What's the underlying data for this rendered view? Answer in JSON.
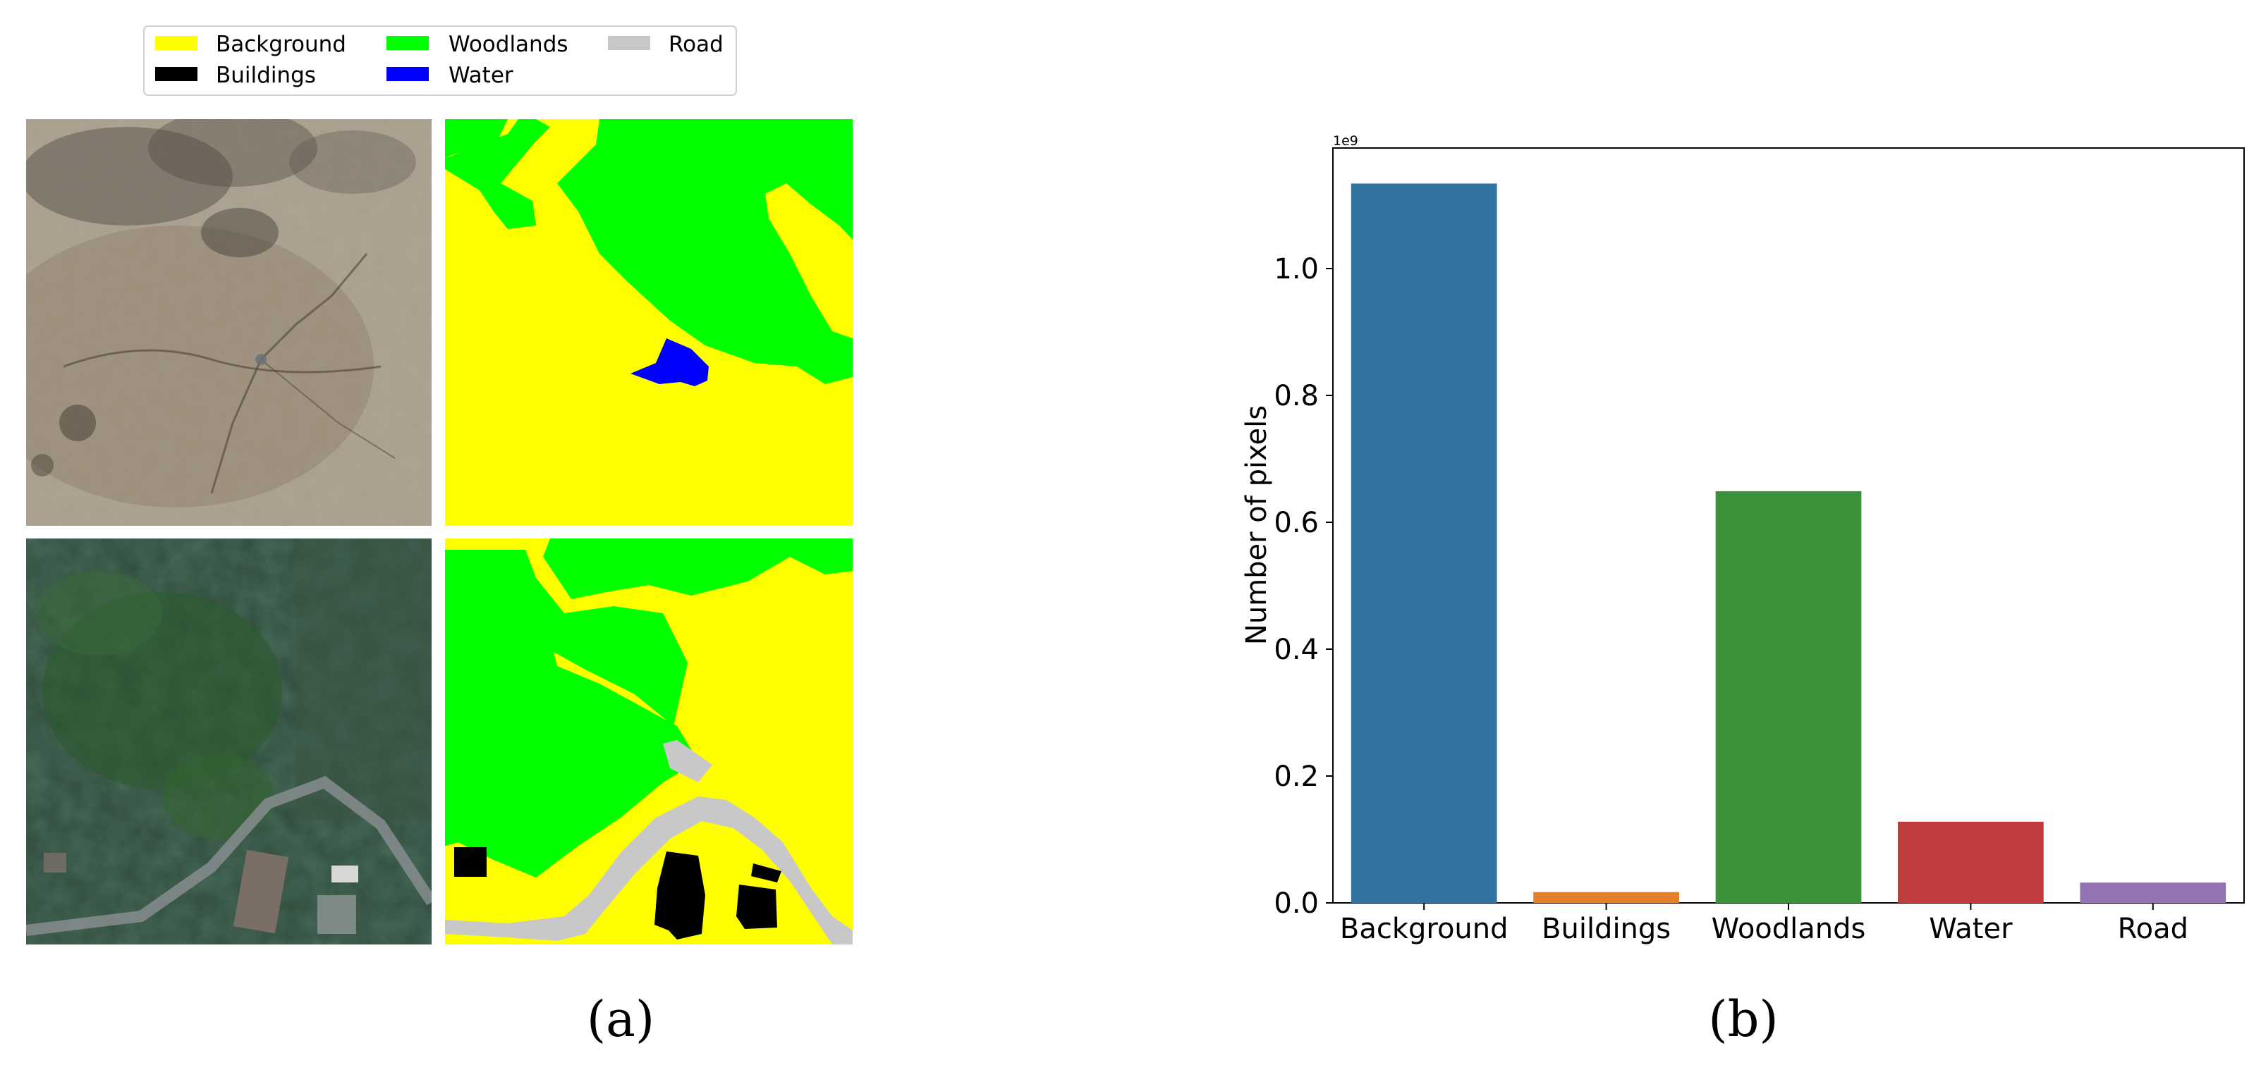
{
  "panel_a": {
    "label": "(a)",
    "legend": [
      {
        "name": "Background",
        "color": "#ffff00"
      },
      {
        "name": "Woodlands",
        "color": "#00ff00"
      },
      {
        "name": "Road",
        "color": "#c8c8c8"
      },
      {
        "name": "Buildings",
        "color": "#000000"
      },
      {
        "name": "Water",
        "color": "#0000ff"
      }
    ],
    "tiles": [
      {
        "kind": "aerial-photo",
        "scene": "dry meadow with sparse trees"
      },
      {
        "kind": "segmentation-mask",
        "classes": [
          "Background",
          "Woodlands",
          "Water"
        ]
      },
      {
        "kind": "aerial-photo",
        "scene": "forest with houses and road"
      },
      {
        "kind": "segmentation-mask",
        "classes": [
          "Background",
          "Woodlands",
          "Road",
          "Buildings"
        ]
      }
    ]
  },
  "panel_b": {
    "label": "(b)"
  },
  "chart_data": {
    "type": "bar",
    "categories": [
      "Background",
      "Buildings",
      "Woodlands",
      "Water",
      "Road"
    ],
    "values": [
      1134000000,
      17000000,
      649000000,
      128000000,
      32000000
    ],
    "colors": [
      "#3274a1",
      "#e1812c",
      "#3a923a",
      "#c03d3e",
      "#9372b2"
    ],
    "title": "",
    "xlabel": "",
    "ylabel": "Number of pixels",
    "offset_text": "1e9",
    "ylim": [
      0,
      1190000000
    ],
    "yticks": [
      0,
      200000000,
      400000000,
      600000000,
      800000000,
      1000000000
    ],
    "ytick_labels": [
      "0.0",
      "0.2",
      "0.4",
      "0.6",
      "0.8",
      "1.0"
    ],
    "grid": false
  }
}
